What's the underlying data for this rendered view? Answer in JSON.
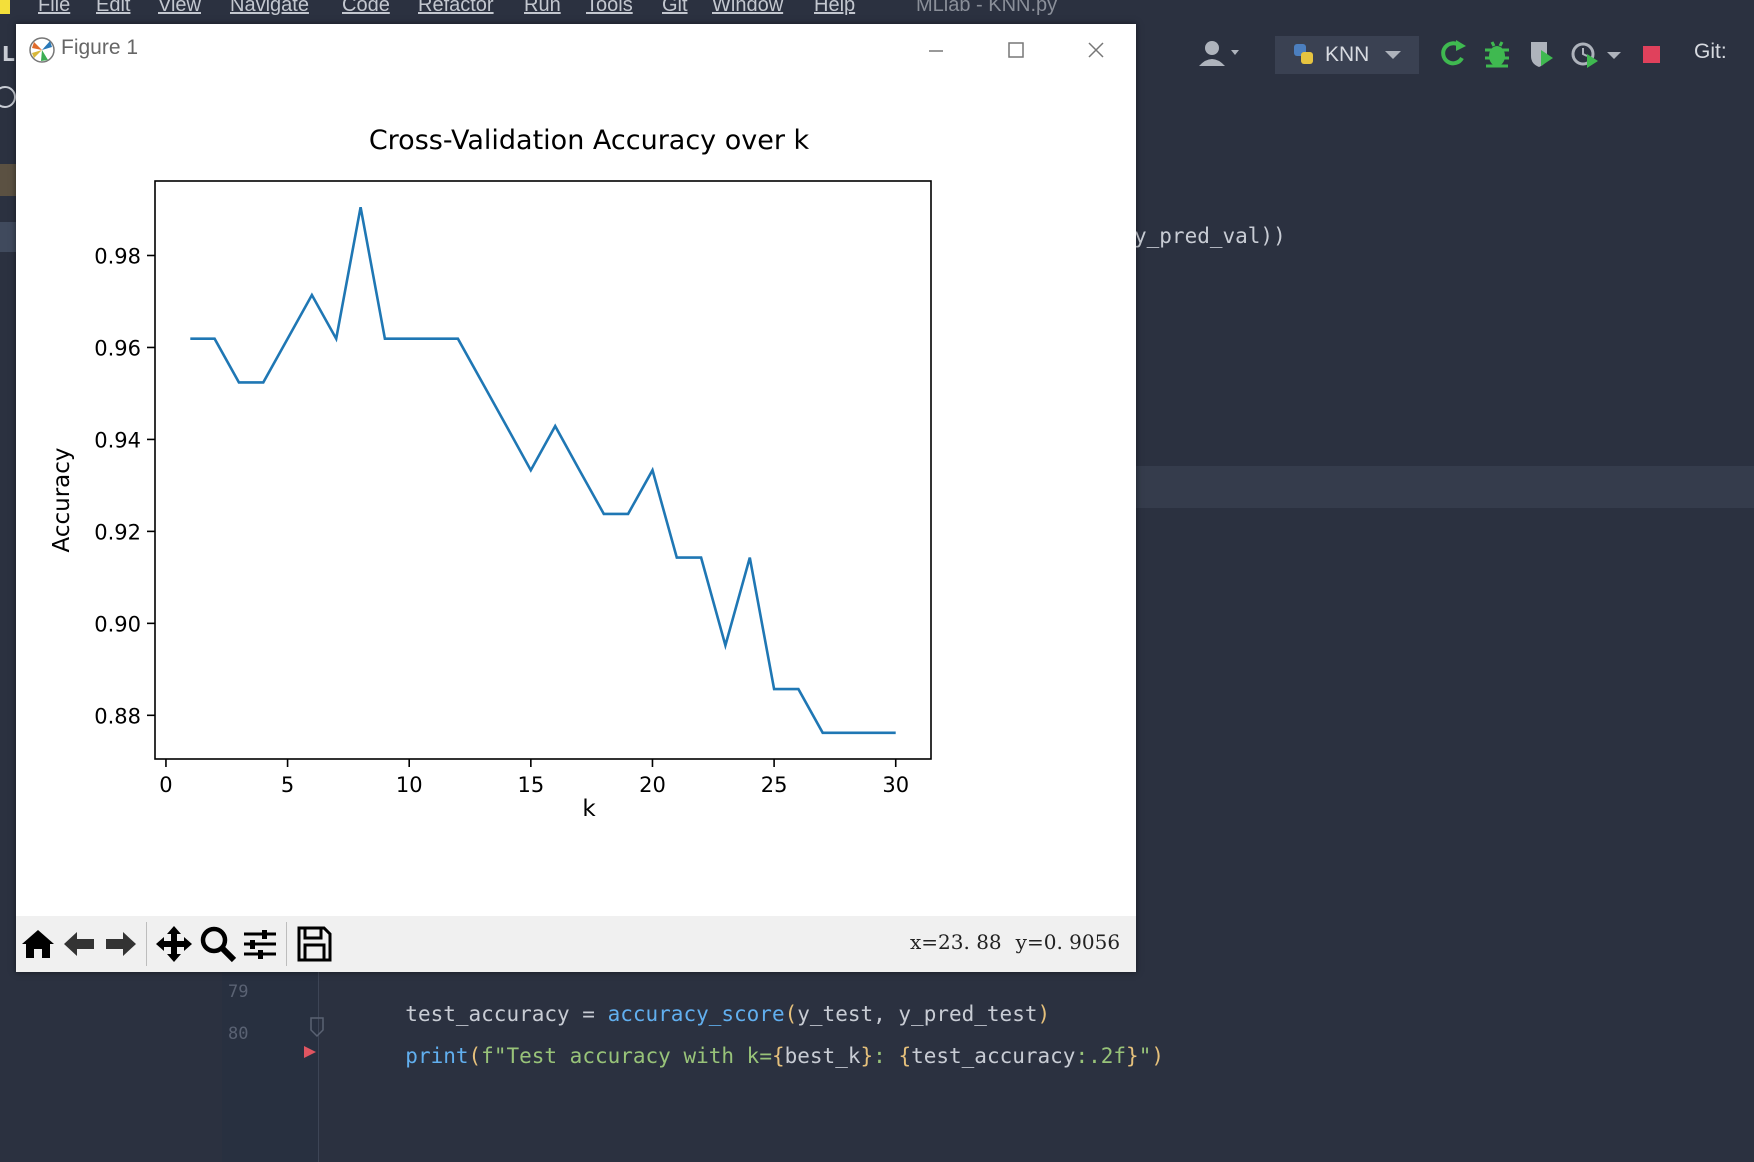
{
  "ide": {
    "menu": [
      "File",
      "Edit",
      "View",
      "Navigate",
      "Code",
      "Refactor",
      "Run",
      "Tools",
      "Git",
      "Window",
      "Help"
    ],
    "window_title": "MLlab - KNN.py",
    "run_config": "KNN",
    "git_label": "Git:",
    "left_edge_text": "L",
    "code_fragment_top": "y_pred_val))",
    "code_lines": [
      {
        "number": "79",
        "text": "test_accuracy = accuracy_score(y_test, y_pred_test)"
      },
      {
        "number": "80",
        "text": "print(f\"Test accuracy with k={best_k}: {test_accuracy:.2f}\")"
      }
    ],
    "colors": {
      "background": "#2b3140",
      "run_green": "#3fb950",
      "stop_red": "#e0415c"
    }
  },
  "figure": {
    "window_title": "Figure 1",
    "toolbar_icons": [
      "home-icon",
      "back-icon",
      "forward-icon",
      "pan-icon",
      "zoom-icon",
      "configure-subplots-icon",
      "save-icon"
    ],
    "coords_x": "x=23. 88",
    "coords_y": "y=0. 9056"
  },
  "chart_data": {
    "type": "line",
    "title": "Cross-Validation Accuracy over k",
    "xlabel": "k",
    "ylabel": "Accuracy",
    "x": [
      1,
      2,
      3,
      4,
      5,
      6,
      7,
      8,
      9,
      10,
      11,
      12,
      13,
      14,
      15,
      16,
      17,
      18,
      19,
      20,
      21,
      22,
      23,
      24,
      25,
      26,
      27,
      28,
      29,
      30
    ],
    "series": [
      {
        "values": [
          0.9619,
          0.9619,
          0.9524,
          0.9524,
          0.9619,
          0.9714,
          0.9619,
          0.9905,
          0.9619,
          0.9619,
          0.9619,
          0.9619,
          0.9524,
          0.9429,
          0.9333,
          0.9429,
          0.9333,
          0.9238,
          0.9238,
          0.9333,
          0.9143,
          0.9143,
          0.8952,
          0.9143,
          0.8857,
          0.8857,
          0.8762,
          0.8762,
          0.8762,
          0.8762
        ],
        "color": "#1f77b4"
      }
    ],
    "xlim": [
      -0.45,
      31.45
    ],
    "ylim": [
      0.8705,
      0.9962
    ],
    "xticks": [
      "0",
      "5",
      "10",
      "15",
      "20",
      "25",
      "30"
    ],
    "xtick_values": [
      0,
      5,
      10,
      15,
      20,
      25,
      30
    ],
    "yticks": [
      "0.88",
      "0.90",
      "0.92",
      "0.94",
      "0.96",
      "0.98"
    ],
    "ytick_values": [
      0.88,
      0.9,
      0.92,
      0.94,
      0.96,
      0.98
    ],
    "grid": false,
    "legend": "none"
  }
}
